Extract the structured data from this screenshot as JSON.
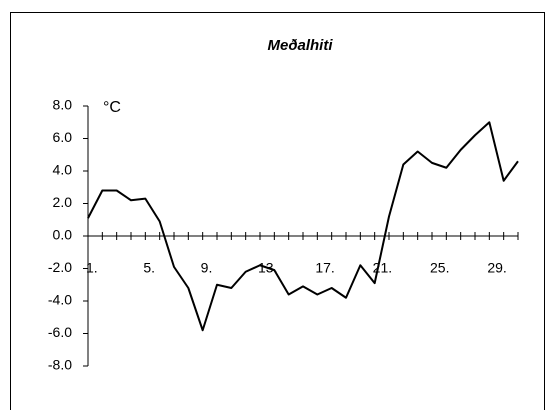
{
  "chart_data": {
    "type": "line",
    "title": "Meðalhiti",
    "y_unit": "°C",
    "categories": [
      "1.",
      null,
      null,
      null,
      "5.",
      null,
      null,
      null,
      "9.",
      null,
      null,
      null,
      "13.",
      null,
      null,
      null,
      "17.",
      null,
      null,
      null,
      "21.",
      null,
      null,
      null,
      "25.",
      null,
      null,
      null,
      "29.",
      null,
      null
    ],
    "series": [
      {
        "color": "#000000",
        "values": [
          1.1,
          2.8,
          2.8,
          2.2,
          2.3,
          0.9,
          -1.9,
          -3.2,
          -5.8,
          -3.0,
          -3.2,
          -2.2,
          -1.8,
          -2.1,
          -3.6,
          -3.1,
          -3.6,
          -3.2,
          -3.8,
          -1.8,
          -2.9,
          1.2,
          4.4,
          5.2,
          4.5,
          4.2,
          5.3,
          6.2,
          7.0,
          3.4,
          4.6
        ]
      }
    ],
    "ylim": [
      -8,
      8
    ],
    "yticks": [
      {
        "value": 8,
        "label": "8.0"
      },
      {
        "value": 6,
        "label": "6.0"
      },
      {
        "value": 4,
        "label": "4.0"
      },
      {
        "value": 2,
        "label": "2.0"
      },
      {
        "value": 0,
        "label": "0.0"
      },
      {
        "value": -2,
        "label": "-2.0"
      },
      {
        "value": -4,
        "label": "-4.0"
      },
      {
        "value": -6,
        "label": "-6.0"
      },
      {
        "value": -8,
        "label": "-8.0"
      }
    ]
  }
}
